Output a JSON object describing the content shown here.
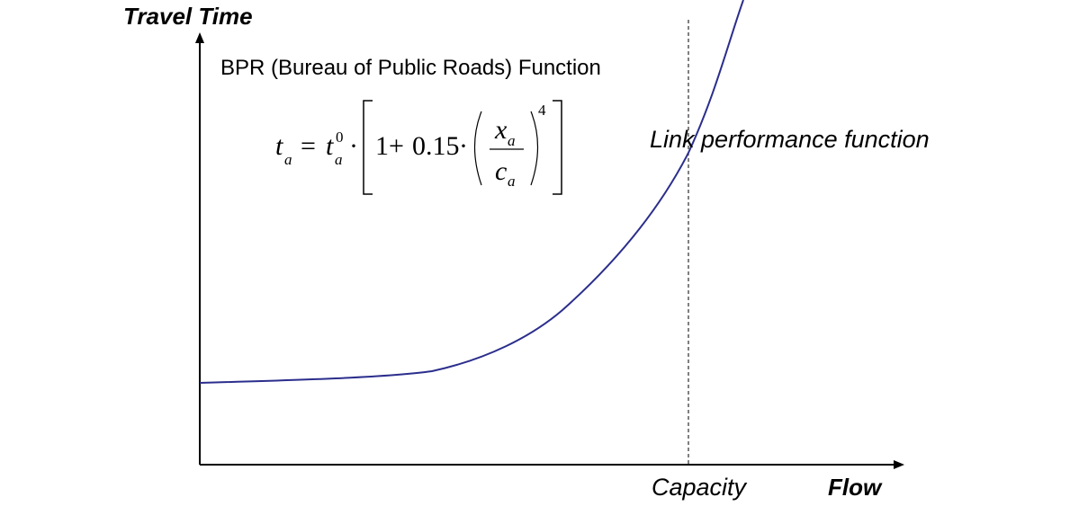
{
  "diagram": {
    "y_axis_title": "Travel Time",
    "x_axis_title": "Flow",
    "capacity_label": "Capacity",
    "curve_label": "Link performance function",
    "formula_heading": "BPR (Bureau of Public Roads) Function",
    "formula": {
      "lhs": "t",
      "lhs_subscript": "a",
      "equals": "=",
      "free_flow": "t",
      "free_flow_subscript": "a",
      "free_flow_superscript": "0",
      "dot": "·",
      "one_plus": "1+",
      "coefficient": "0.15",
      "numerator": "x",
      "numerator_subscript": "a",
      "denominator": "c",
      "denominator_subscript": "a",
      "exponent": "4"
    },
    "colors": {
      "curve": "#2B2E8C",
      "axes": "#000000",
      "capacity_line": "#000000"
    }
  }
}
